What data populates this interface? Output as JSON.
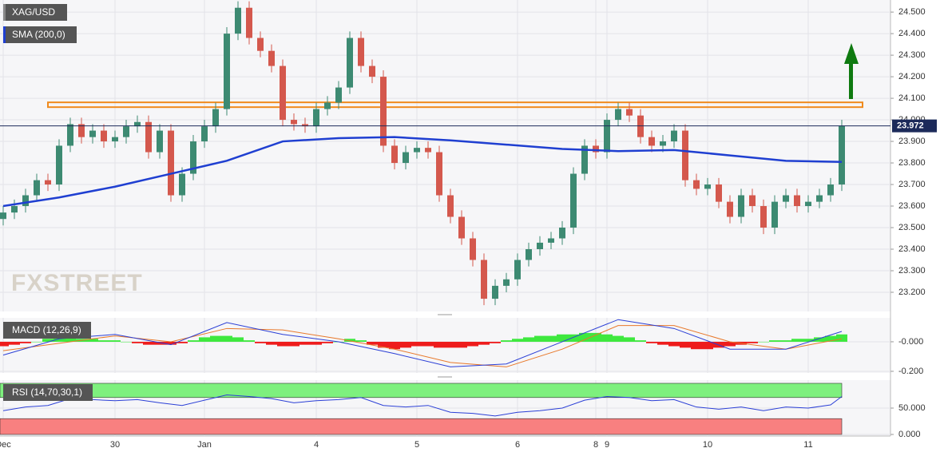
{
  "chart_data": {
    "type": "candlestick",
    "title": "XAG/USD",
    "watermark": "FXSTREET",
    "categories": [
      "Dec",
      null,
      null,
      null,
      null,
      null,
      null,
      null,
      null,
      null,
      "30",
      null,
      null,
      null,
      null,
      null,
      null,
      null,
      "Jan",
      null,
      null,
      null,
      null,
      null,
      null,
      null,
      null,
      null,
      "4",
      null,
      null,
      null,
      null,
      null,
      null,
      null,
      null,
      "5",
      null,
      null,
      null,
      null,
      null,
      null,
      null,
      null,
      "6",
      null,
      null,
      null,
      null,
      null,
      null,
      "8",
      "9",
      null,
      null,
      null,
      null,
      null,
      null,
      null,
      null,
      "10",
      null,
      null,
      null,
      null,
      null,
      null,
      null,
      null,
      "11",
      null,
      null,
      null
    ],
    "open": [
      23.54,
      23.57,
      23.6,
      23.65,
      23.72,
      23.7,
      23.88,
      23.98,
      23.92,
      23.95,
      23.9,
      23.92,
      23.97,
      23.99,
      23.85,
      23.95,
      23.65,
      23.75,
      23.9,
      23.97,
      24.05,
      24.4,
      24.52,
      24.38,
      24.32,
      24.25,
      24.0,
      23.98,
      23.97,
      24.05,
      24.08,
      24.15,
      24.38,
      24.25,
      24.2,
      23.88,
      23.8,
      23.85,
      23.87,
      23.85,
      23.65,
      23.55,
      23.45,
      23.35,
      23.17,
      23.23,
      23.26,
      23.35,
      23.4,
      23.43,
      23.45,
      23.5,
      23.75,
      23.88,
      23.85,
      24.0,
      24.05,
      24.02,
      23.92,
      23.88,
      23.9,
      23.95,
      23.72,
      23.68,
      23.7,
      23.62,
      23.55,
      23.65,
      23.6,
      23.5,
      23.62,
      23.65,
      23.6,
      23.62,
      23.65,
      23.7
    ],
    "high": [
      23.6,
      23.63,
      23.68,
      23.75,
      23.75,
      23.91,
      24.01,
      24.01,
      23.98,
      23.98,
      23.95,
      24.0,
      24.02,
      24.02,
      23.98,
      23.98,
      23.78,
      23.93,
      24.0,
      24.08,
      24.43,
      24.55,
      24.55,
      24.41,
      24.35,
      24.28,
      24.03,
      24.01,
      24.08,
      24.11,
      24.18,
      24.41,
      24.41,
      24.28,
      24.23,
      23.91,
      23.88,
      23.9,
      23.9,
      23.88,
      23.68,
      23.58,
      23.48,
      23.38,
      23.26,
      23.29,
      23.38,
      23.43,
      23.46,
      23.48,
      23.53,
      23.78,
      23.91,
      23.91,
      24.03,
      24.08,
      24.08,
      24.05,
      23.95,
      23.93,
      23.98,
      23.98,
      23.75,
      23.73,
      23.73,
      23.65,
      23.68,
      23.68,
      23.63,
      23.65,
      23.68,
      23.68,
      23.65,
      23.68,
      23.73,
      24.0
    ],
    "low": [
      23.51,
      23.54,
      23.57,
      23.62,
      23.67,
      23.67,
      23.85,
      23.89,
      23.89,
      23.87,
      23.87,
      23.89,
      23.94,
      23.82,
      23.82,
      23.62,
      23.62,
      23.72,
      23.87,
      23.94,
      24.02,
      24.37,
      24.35,
      24.29,
      24.22,
      23.97,
      23.95,
      23.94,
      23.94,
      24.02,
      24.05,
      24.12,
      24.22,
      24.17,
      23.85,
      23.77,
      23.77,
      23.82,
      23.82,
      23.62,
      23.52,
      23.42,
      23.32,
      23.14,
      23.14,
      23.2,
      23.23,
      23.32,
      23.37,
      23.4,
      23.42,
      23.47,
      23.72,
      23.82,
      23.82,
      23.97,
      23.99,
      23.89,
      23.85,
      23.85,
      23.87,
      23.69,
      23.65,
      23.65,
      23.59,
      23.52,
      23.52,
      23.57,
      23.47,
      23.47,
      23.59,
      23.57,
      23.57,
      23.59,
      23.62,
      23.67
    ],
    "close": [
      23.57,
      23.6,
      23.65,
      23.72,
      23.7,
      23.88,
      23.98,
      23.92,
      23.95,
      23.9,
      23.92,
      23.97,
      23.99,
      23.85,
      23.95,
      23.65,
      23.75,
      23.9,
      23.97,
      24.05,
      24.4,
      24.52,
      24.38,
      24.32,
      24.25,
      24.0,
      23.98,
      23.97,
      24.05,
      24.08,
      24.15,
      24.38,
      24.25,
      24.2,
      23.88,
      23.8,
      23.85,
      23.87,
      23.85,
      23.65,
      23.55,
      23.45,
      23.35,
      23.17,
      23.23,
      23.26,
      23.35,
      23.4,
      23.43,
      23.45,
      23.5,
      23.75,
      23.88,
      23.85,
      24.0,
      24.05,
      24.02,
      23.92,
      23.88,
      23.9,
      23.95,
      23.72,
      23.68,
      23.7,
      23.62,
      23.55,
      23.65,
      23.6,
      23.5,
      23.62,
      23.65,
      23.6,
      23.62,
      23.65,
      23.7,
      23.972
    ],
    "up_color": "#3d8a72",
    "down_color": "#d4584d",
    "last_price": 23.972,
    "last_price_label": "23.972",
    "resistance": 24.07,
    "sma": {
      "name": "SMA (200,0)",
      "color": "#1f3fd1",
      "x": [
        0,
        5,
        10,
        15,
        20,
        25,
        30,
        35,
        40,
        45,
        50,
        55,
        60,
        65,
        70,
        75
      ],
      "values": [
        23.6,
        23.64,
        23.69,
        23.75,
        23.81,
        23.9,
        23.915,
        23.92,
        23.905,
        23.885,
        23.865,
        23.855,
        23.86,
        23.835,
        23.81,
        23.805
      ]
    },
    "ylim": [
      23.111,
      24.556
    ],
    "yticks": [
      {
        "value": 23.2,
        "label": "23.200"
      },
      {
        "value": 23.3,
        "label": "23.300"
      },
      {
        "value": 23.4,
        "label": "23.400"
      },
      {
        "value": 23.5,
        "label": "23.500"
      },
      {
        "value": 23.6,
        "label": "23.600"
      },
      {
        "value": 23.7,
        "label": "23.700"
      },
      {
        "value": 23.8,
        "label": "23.800"
      },
      {
        "value": 23.9,
        "label": "23.900"
      },
      {
        "value": 24.0,
        "label": "24.000"
      },
      {
        "value": 24.1,
        "label": "24.100"
      },
      {
        "value": 24.2,
        "label": "24.200"
      },
      {
        "value": 24.3,
        "label": "24.300"
      },
      {
        "value": 24.4,
        "label": "24.400"
      },
      {
        "value": 24.5,
        "label": "24.500"
      }
    ],
    "macd": {
      "name": "MACD (12,26,9)",
      "x": [
        0,
        5,
        10,
        15,
        20,
        25,
        30,
        35,
        40,
        45,
        50,
        55,
        60,
        65,
        70,
        75
      ],
      "line": {
        "color": "#2b3fd6",
        "values": [
          -0.09,
          0.02,
          0.05,
          -0.02,
          0.13,
          0.05,
          0.0,
          -0.08,
          -0.17,
          -0.15,
          0.0,
          0.15,
          0.09,
          -0.05,
          -0.05,
          0.07
        ]
      },
      "signal": {
        "color": "#e8782a",
        "values": [
          -0.06,
          -0.01,
          0.04,
          0.0,
          0.09,
          0.08,
          0.02,
          -0.05,
          -0.14,
          -0.17,
          -0.05,
          0.11,
          0.11,
          0.0,
          -0.05,
          0.02
        ]
      },
      "histogram": [
        -0.03,
        -0.02,
        -0.01,
        0.0,
        0.02,
        0.03,
        0.03,
        0.02,
        0.02,
        0.01,
        0.01,
        0.0,
        -0.01,
        -0.02,
        -0.02,
        -0.02,
        -0.01,
        0.01,
        0.03,
        0.04,
        0.04,
        0.03,
        0.01,
        -0.01,
        -0.02,
        -0.03,
        -0.03,
        -0.02,
        -0.02,
        -0.01,
        0.0,
        0.02,
        0.01,
        -0.02,
        -0.04,
        -0.05,
        -0.04,
        -0.03,
        -0.03,
        -0.04,
        -0.04,
        -0.04,
        -0.03,
        -0.02,
        -0.01,
        0.01,
        0.02,
        0.03,
        0.04,
        0.04,
        0.05,
        0.05,
        0.06,
        0.06,
        0.05,
        0.04,
        0.03,
        0.01,
        -0.01,
        -0.02,
        -0.03,
        -0.04,
        -0.05,
        -0.05,
        -0.04,
        -0.03,
        -0.02,
        -0.01,
        0.0,
        0.01,
        0.01,
        0.02,
        0.02,
        0.03,
        0.04,
        0.05
      ],
      "pos_color": "#3ee83e",
      "neg_color": "#ee1c1c",
      "ylim": [
        -0.211,
        0.162
      ],
      "yticks": [
        {
          "value": -0.2,
          "label": "-0.200"
        },
        {
          "value": 0,
          "label": "-0.000"
        }
      ]
    },
    "rsi": {
      "name": "RSI (14,70,30,1)",
      "color": "#2b3fd6",
      "x": [
        0,
        2,
        4,
        6,
        8,
        10,
        12,
        14,
        16,
        18,
        20,
        22,
        24,
        26,
        28,
        30,
        32,
        34,
        36,
        38,
        40,
        42,
        44,
        46,
        48,
        50,
        52,
        54,
        56,
        58,
        60,
        62,
        64,
        66,
        68,
        70,
        72,
        74,
        75
      ],
      "values": [
        45,
        52,
        55,
        68,
        66,
        64,
        66,
        60,
        55,
        65,
        75,
        72,
        68,
        60,
        64,
        66,
        70,
        55,
        52,
        55,
        42,
        40,
        35,
        42,
        45,
        50,
        65,
        72,
        70,
        64,
        66,
        52,
        48,
        52,
        45,
        52,
        50,
        56,
        72
      ],
      "upper": 70,
      "lower": 30,
      "ylim": [
        -3,
        103
      ],
      "yticks": [
        {
          "value": 0,
          "label": "0.000"
        },
        {
          "value": 50,
          "label": "50.000"
        }
      ]
    }
  }
}
